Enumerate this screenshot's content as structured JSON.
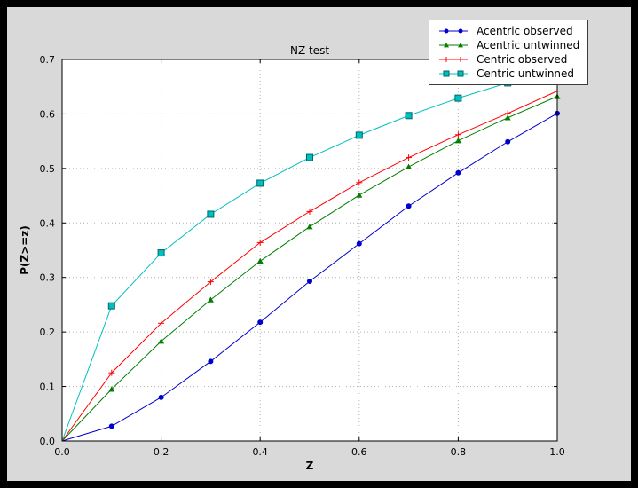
{
  "window": {
    "outer_background": "#000000",
    "figure_background": "#d9d9d9",
    "plot_background": "#ffffff",
    "grid_color": "#b0b0b0",
    "axis_color": "#000000"
  },
  "chart_data": {
    "type": "line",
    "title": "NZ test",
    "xlabel": "Z",
    "ylabel": "P(Z>=z)",
    "xlim": [
      0.0,
      1.0
    ],
    "ylim": [
      0.0,
      0.7
    ],
    "x_ticks": [
      "0.0",
      "0.2",
      "0.4",
      "0.6",
      "0.8",
      "1.0"
    ],
    "y_ticks": [
      "0.0",
      "0.1",
      "0.2",
      "0.3",
      "0.4",
      "0.5",
      "0.6",
      "0.7"
    ],
    "grid": true,
    "legend_position": "upper right",
    "x": [
      0.0,
      0.1,
      0.2,
      0.3,
      0.4,
      0.5,
      0.6,
      0.7,
      0.8,
      0.9,
      1.0
    ],
    "series": [
      {
        "name": "Acentric observed",
        "color": "#0000cc",
        "marker": "circle",
        "values": [
          0.0,
          0.027,
          0.08,
          0.146,
          0.218,
          0.293,
          0.362,
          0.431,
          0.492,
          0.549,
          0.601
        ]
      },
      {
        "name": "Acentric untwinned",
        "color": "#007f00",
        "marker": "triangle",
        "values": [
          0.0,
          0.095,
          0.183,
          0.259,
          0.33,
          0.393,
          0.451,
          0.503,
          0.551,
          0.593,
          0.632
        ]
      },
      {
        "name": "Centric observed",
        "color": "#ff0000",
        "marker": "plus",
        "values": [
          0.0,
          0.125,
          0.216,
          0.292,
          0.364,
          0.421,
          0.474,
          0.52,
          0.562,
          0.601,
          0.642
        ]
      },
      {
        "name": "Centric untwinned",
        "color": "#00bfbf",
        "marker": "square",
        "values": [
          0.0,
          0.248,
          0.345,
          0.416,
          0.473,
          0.52,
          0.561,
          0.597,
          0.629,
          0.657,
          0.683
        ]
      }
    ]
  }
}
